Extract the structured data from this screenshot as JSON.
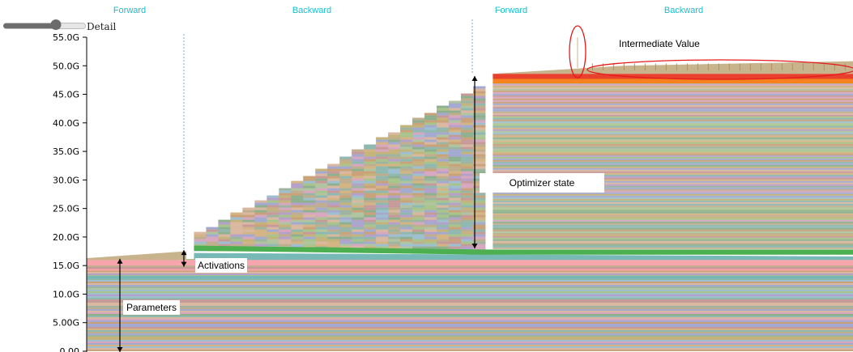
{
  "controls": {
    "detail_label": "Detail",
    "detail_slider_value": 0.65
  },
  "phases": [
    "Forward",
    "Backward",
    "Forward",
    "Backward"
  ],
  "annotations": {
    "parameters": "Parameters",
    "activations": "Activations",
    "optimizer_state": "Optimizer state",
    "intermediate_value": "Intermediate Value"
  },
  "colors": {
    "phase_label": "#17becf",
    "pink_band": "#f7a5ad",
    "teal_band": "#76b9b7",
    "green_band": "#4caf50",
    "orange_band": "#f5821f",
    "red_band": "#e8412d",
    "circle": "#e41a1c"
  },
  "chart_data": {
    "type": "area",
    "title": "",
    "xlabel": "",
    "ylabel": "",
    "ylim": [
      0,
      55
    ],
    "y_unit": "G",
    "y_ticks": [
      "0.00",
      "5.00G",
      "10.0G",
      "15.0G",
      "20.0G",
      "25.0G",
      "30.0G",
      "35.0G",
      "40.0G",
      "45.0G",
      "50.0G",
      "55.0G"
    ],
    "stacked": true,
    "x": [
      0,
      0.13,
      0.14,
      0.52,
      0.53,
      0.7,
      1.0
    ],
    "series": [
      {
        "values": [
          16.0,
          16.0,
          16.0,
          16.0,
          16.0,
          16.0,
          16.0
        ]
      },
      {
        "values": [
          0.3,
          1.5,
          3.5,
          30.0,
          2.0,
          2.0,
          2.0
        ]
      },
      {
        "values": [
          0.0,
          0.0,
          0.0,
          0.0,
          30.3,
          31.8,
          32.3
        ]
      }
    ]
  }
}
